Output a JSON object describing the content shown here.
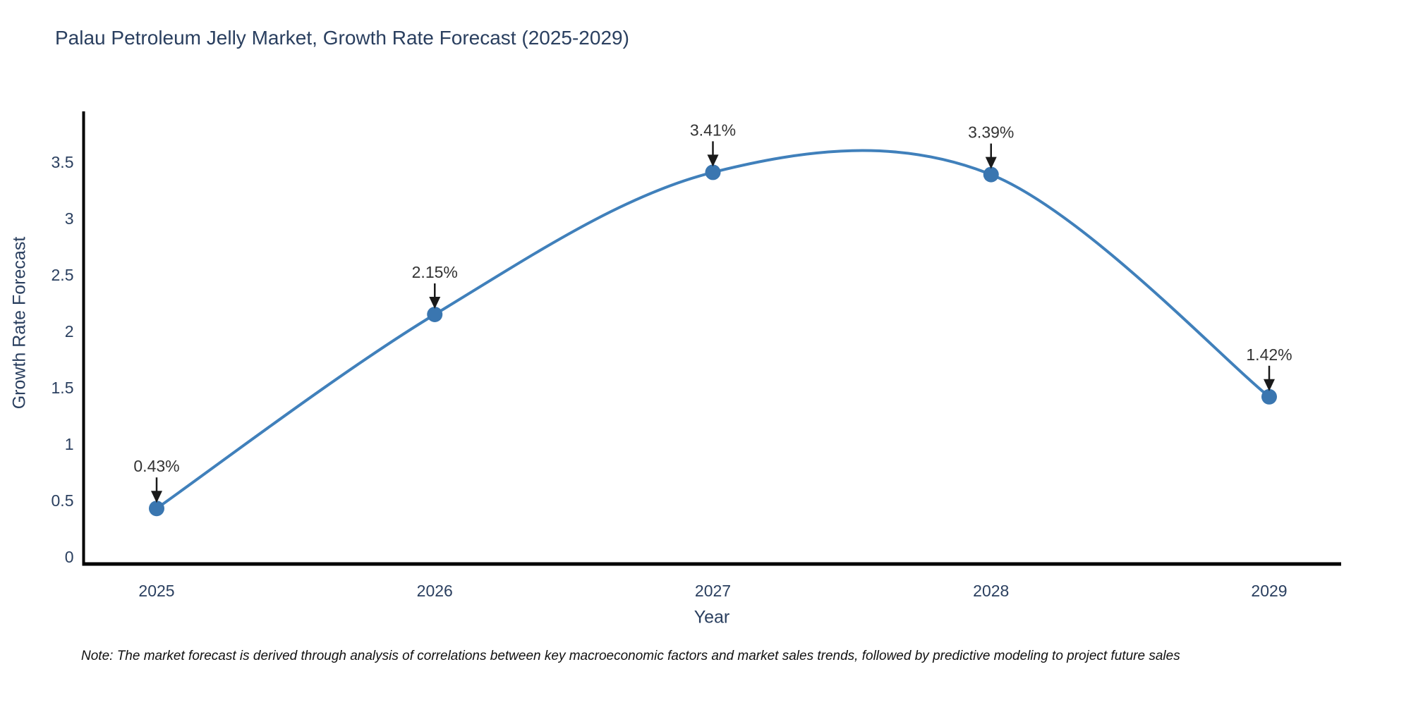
{
  "header": {
    "title": "Palau Petroleum Jelly Market, Growth Rate Forecast (2025-2029)"
  },
  "axes": {
    "x_label": "Year",
    "y_label": "Growth Rate Forecast"
  },
  "footer": {
    "note": "Note: The market forecast is derived through analysis of correlations between key macroeconomic factors and market sales trends, followed by predictive modeling to project future sales"
  },
  "chart_data": {
    "type": "line",
    "title": "Palau Petroleum Jelly Market, Growth Rate Forecast (2025-2029)",
    "xlabel": "Year",
    "ylabel": "Growth Rate Forecast",
    "x": [
      2025,
      2026,
      2027,
      2028,
      2029
    ],
    "series": [
      {
        "name": "Growth Rate Forecast",
        "values": [
          0.43,
          2.15,
          3.41,
          3.39,
          1.42
        ]
      }
    ],
    "point_labels": [
      "0.43%",
      "2.15%",
      "3.41%",
      "3.39%",
      "1.42%"
    ],
    "yticks": [
      0,
      0.5,
      1,
      1.5,
      2,
      2.5,
      3,
      3.5
    ],
    "ylim": [
      0,
      3.9
    ],
    "line_shape": "spline",
    "grid": false,
    "legend_position": "none",
    "colors": {
      "line": "#4080bb",
      "marker": "#3a76b0",
      "axis": "#000000",
      "axis_text": "#2a3f5f",
      "annotation_text": "#333333",
      "arrow": "#1a1a1a"
    }
  }
}
